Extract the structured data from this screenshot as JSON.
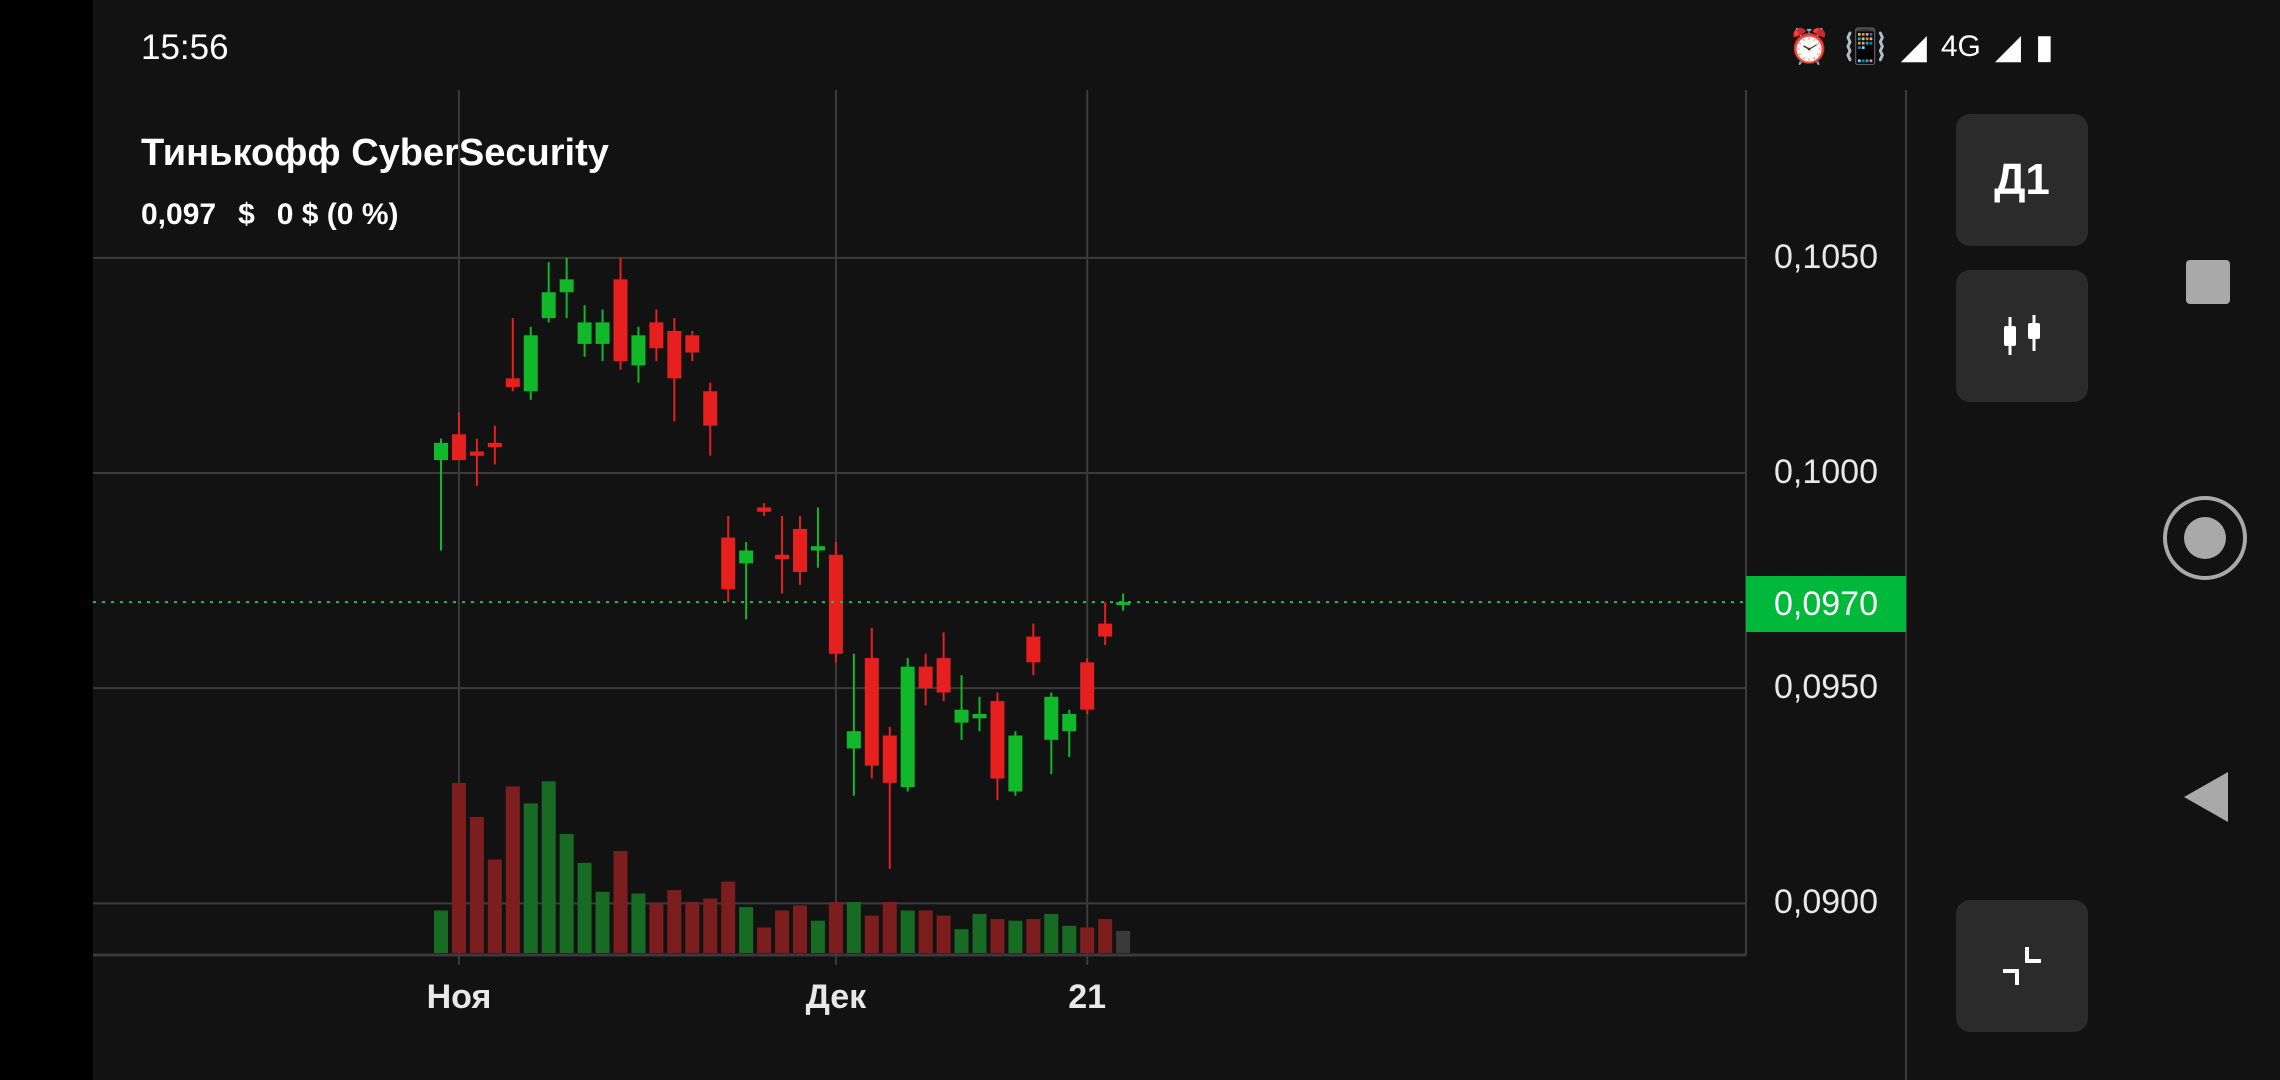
{
  "status_bar": {
    "time": "15:56",
    "icons": [
      "alarm-icon",
      "vibrate-icon",
      "signal-icon",
      "signal-icon",
      "battery-icon"
    ],
    "network": "4G"
  },
  "instrument": {
    "name": "Тинькофф CyberSecurity",
    "price": "0,097",
    "currency": "$",
    "change": "0 $ (0 %)"
  },
  "controls": {
    "timeframe_label": "Д1",
    "chart_type_icon": "candlestick-icon",
    "collapse_icon": "collapse-icon"
  },
  "chart_data": {
    "type": "candlestick",
    "y_tick_labels": [
      "0,1050",
      "0,1000",
      "0,0950",
      "0,0900"
    ],
    "y_ticks": [
      0.105,
      0.1,
      0.095,
      0.09
    ],
    "ylim": [
      0.0888,
      0.1089
    ],
    "x_tick_labels": [
      "Ноя",
      "Дек",
      "21"
    ],
    "x_tick_index": [
      1,
      22,
      36
    ],
    "current_value": 0.097,
    "current_label": "0,0970",
    "candles": [
      {
        "o": 0.1003,
        "c": 0.1007,
        "h": 0.1008,
        "l": 0.0982,
        "v": 0.25
      },
      {
        "o": 0.1009,
        "c": 0.1003,
        "h": 0.1014,
        "l": 0.1003,
        "v": 1.0
      },
      {
        "o": 0.1005,
        "c": 0.1004,
        "h": 0.1008,
        "l": 0.0997,
        "v": 0.8
      },
      {
        "o": 0.1007,
        "c": 0.1006,
        "h": 0.1011,
        "l": 0.1002,
        "v": 0.55
      },
      {
        "o": 0.1022,
        "c": 0.102,
        "h": 0.1036,
        "l": 0.1019,
        "v": 0.98
      },
      {
        "o": 0.1019,
        "c": 0.1032,
        "h": 0.1034,
        "l": 0.1017,
        "v": 0.88
      },
      {
        "o": 0.1036,
        "c": 0.1042,
        "h": 0.1049,
        "l": 0.1035,
        "v": 1.01
      },
      {
        "o": 0.1042,
        "c": 0.1045,
        "h": 0.105,
        "l": 0.1036,
        "v": 0.7
      },
      {
        "o": 0.103,
        "c": 0.1035,
        "h": 0.1039,
        "l": 0.1027,
        "v": 0.53
      },
      {
        "o": 0.103,
        "c": 0.1035,
        "h": 0.1038,
        "l": 0.1026,
        "v": 0.36
      },
      {
        "o": 0.1045,
        "c": 0.1026,
        "h": 0.105,
        "l": 0.1024,
        "v": 0.6
      },
      {
        "o": 0.1025,
        "c": 0.1032,
        "h": 0.1034,
        "l": 0.1021,
        "v": 0.35
      },
      {
        "o": 0.1035,
        "c": 0.1029,
        "h": 0.1038,
        "l": 0.1026,
        "v": 0.29
      },
      {
        "o": 0.1033,
        "c": 0.1022,
        "h": 0.1036,
        "l": 0.1012,
        "v": 0.37
      },
      {
        "o": 0.1032,
        "c": 0.1028,
        "h": 0.1033,
        "l": 0.1026,
        "v": 0.3
      },
      {
        "o": 0.1019,
        "c": 0.1011,
        "h": 0.1021,
        "l": 0.1004,
        "v": 0.32
      },
      {
        "o": 0.0985,
        "c": 0.0973,
        "h": 0.099,
        "l": 0.097,
        "v": 0.42
      },
      {
        "o": 0.0979,
        "c": 0.0982,
        "h": 0.0984,
        "l": 0.0966,
        "v": 0.27
      },
      {
        "o": 0.0992,
        "c": 0.0991,
        "h": 0.0993,
        "l": 0.099,
        "v": 0.15
      },
      {
        "o": 0.0981,
        "c": 0.098,
        "h": 0.099,
        "l": 0.0972,
        "v": 0.25
      },
      {
        "o": 0.0987,
        "c": 0.0977,
        "h": 0.099,
        "l": 0.0974,
        "v": 0.28
      },
      {
        "o": 0.0982,
        "c": 0.0983,
        "h": 0.0992,
        "l": 0.0978,
        "v": 0.19
      },
      {
        "o": 0.0981,
        "c": 0.0958,
        "h": 0.0984,
        "l": 0.0956,
        "v": 0.3
      },
      {
        "o": 0.0936,
        "c": 0.094,
        "h": 0.0958,
        "l": 0.0925,
        "v": 0.3
      },
      {
        "o": 0.0957,
        "c": 0.0932,
        "h": 0.0964,
        "l": 0.0929,
        "v": 0.22
      },
      {
        "o": 0.0939,
        "c": 0.0928,
        "h": 0.0941,
        "l": 0.0908,
        "v": 0.3
      },
      {
        "o": 0.0927,
        "c": 0.0955,
        "h": 0.0957,
        "l": 0.0926,
        "v": 0.25
      },
      {
        "o": 0.0955,
        "c": 0.095,
        "h": 0.0958,
        "l": 0.0946,
        "v": 0.25
      },
      {
        "o": 0.0957,
        "c": 0.0949,
        "h": 0.0963,
        "l": 0.0947,
        "v": 0.22
      },
      {
        "o": 0.0942,
        "c": 0.0945,
        "h": 0.0953,
        "l": 0.0938,
        "v": 0.14
      },
      {
        "o": 0.0943,
        "c": 0.0944,
        "h": 0.0948,
        "l": 0.094,
        "v": 0.23
      },
      {
        "o": 0.0947,
        "c": 0.0929,
        "h": 0.0949,
        "l": 0.0924,
        "v": 0.2
      },
      {
        "o": 0.0926,
        "c": 0.0939,
        "h": 0.094,
        "l": 0.0925,
        "v": 0.19
      },
      {
        "o": 0.0962,
        "c": 0.0956,
        "h": 0.0965,
        "l": 0.0953,
        "v": 0.2
      },
      {
        "o": 0.0938,
        "c": 0.0948,
        "h": 0.0949,
        "l": 0.093,
        "v": 0.23
      },
      {
        "o": 0.094,
        "c": 0.0944,
        "h": 0.0945,
        "l": 0.0934,
        "v": 0.16
      },
      {
        "o": 0.0956,
        "c": 0.0945,
        "h": 0.0957,
        "l": 0.0944,
        "v": 0.15
      },
      {
        "o": 0.0965,
        "c": 0.0962,
        "h": 0.097,
        "l": 0.096,
        "v": 0.2
      },
      {
        "o": 0.097,
        "c": 0.097,
        "h": 0.0972,
        "l": 0.0968,
        "v": 0.13
      }
    ]
  },
  "colors": {
    "up": "#10b82a",
    "down": "#e61f1f",
    "vol_up": "#176b23",
    "vol_down": "#7d1e1e",
    "vol_flat": "#3a3a3a",
    "grid": "#3b3b3b",
    "current_line": "#1ec43c"
  }
}
